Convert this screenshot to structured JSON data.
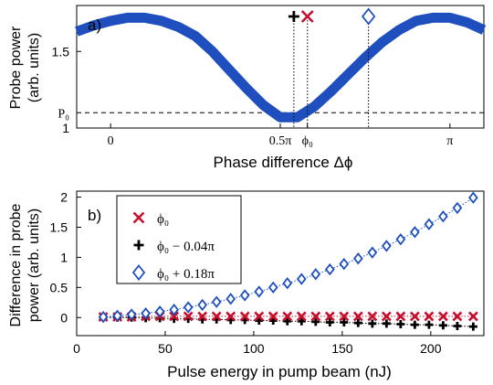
{
  "chart_data": [
    {
      "panel_label": "a)",
      "type": "scatter",
      "xlabel": "Phase difference Δϕ",
      "ylabel_lines": [
        "Probe power",
        "(arb. units)"
      ],
      "xlim": [
        -0.1,
        1.1
      ],
      "ylim": [
        1.0,
        1.8
      ],
      "x_unit": "pi",
      "x_ticks": [
        {
          "value": 0,
          "label": "0"
        },
        {
          "value": 0.5,
          "label": "0.5π"
        },
        {
          "value": 0.58,
          "label": "ϕ₀"
        },
        {
          "value": 1.0,
          "label": "π"
        }
      ],
      "y_ticks": [
        {
          "value": 1.0,
          "label": "1"
        },
        {
          "value": 1.5,
          "label": "1.5"
        }
      ],
      "reference_line": {
        "y": 1.1,
        "label": "P₀",
        "style": "dashed"
      },
      "markers": [
        {
          "x": 0.54,
          "symbol": "+",
          "color": "#000000"
        },
        {
          "x": 0.58,
          "symbol": "x",
          "color": "#c8102e"
        },
        {
          "x": 0.76,
          "symbol": "diamond",
          "color": "#1f4fbf"
        }
      ],
      "series": [
        {
          "color": "#1f4fbf",
          "x": [
            -0.1,
            -0.05,
            0.0,
            0.05,
            0.1,
            0.15,
            0.2,
            0.25,
            0.3,
            0.35,
            0.4,
            0.45,
            0.5,
            0.55,
            0.6,
            0.65,
            0.7,
            0.75,
            0.8,
            0.85,
            0.9,
            0.95,
            1.0,
            1.05,
            1.1
          ],
          "y": [
            1.63,
            1.67,
            1.7,
            1.72,
            1.72,
            1.7,
            1.66,
            1.6,
            1.5,
            1.38,
            1.26,
            1.15,
            1.07,
            1.07,
            1.14,
            1.24,
            1.35,
            1.46,
            1.56,
            1.64,
            1.7,
            1.72,
            1.72,
            1.69,
            1.64
          ]
        }
      ]
    },
    {
      "panel_label": "b)",
      "type": "scatter",
      "xlabel": "Pulse energy in pump beam (nJ)",
      "ylabel_lines": [
        "Difference in probe",
        "power (arb. units)"
      ],
      "xlim": [
        0,
        230
      ],
      "ylim": [
        -0.3,
        2.1
      ],
      "x_ticks": [
        0,
        50,
        100,
        150,
        200
      ],
      "y_ticks": [
        0,
        0.5,
        1,
        1.5,
        2
      ],
      "x": [
        15,
        23,
        31,
        39,
        47,
        55,
        63,
        71,
        79,
        87,
        95,
        103,
        111,
        119,
        127,
        135,
        143,
        151,
        159,
        167,
        175,
        183,
        191,
        199,
        207,
        215,
        224
      ],
      "series": [
        {
          "name": "ϕ₀",
          "marker": "x",
          "color": "#c8102e",
          "values": [
            0.01,
            0.01,
            0.01,
            0.02,
            0.02,
            0.02,
            0.02,
            0.02,
            0.02,
            0.02,
            0.02,
            0.02,
            0.02,
            0.02,
            0.02,
            0.02,
            0.02,
            0.02,
            0.02,
            0.02,
            0.02,
            0.02,
            0.02,
            0.02,
            0.02,
            0.02,
            0.02
          ]
        },
        {
          "name": "ϕ₀ − 0.04π",
          "marker": "+",
          "color": "#000000",
          "values": [
            0.0,
            0.0,
            0.0,
            -0.01,
            -0.01,
            -0.02,
            -0.02,
            -0.03,
            -0.03,
            -0.04,
            -0.04,
            -0.05,
            -0.05,
            -0.06,
            -0.06,
            -0.07,
            -0.08,
            -0.08,
            -0.09,
            -0.1,
            -0.1,
            -0.11,
            -0.12,
            -0.12,
            -0.13,
            -0.14,
            -0.15
          ]
        },
        {
          "name": "ϕ₀ + 0.18π",
          "marker": "diamond",
          "color": "#1f4fbf",
          "values": [
            0.01,
            0.03,
            0.05,
            0.07,
            0.1,
            0.13,
            0.17,
            0.21,
            0.26,
            0.31,
            0.37,
            0.43,
            0.5,
            0.57,
            0.64,
            0.72,
            0.8,
            0.89,
            0.98,
            1.08,
            1.19,
            1.3,
            1.42,
            1.55,
            1.68,
            1.82,
            1.99
          ]
        }
      ]
    }
  ]
}
